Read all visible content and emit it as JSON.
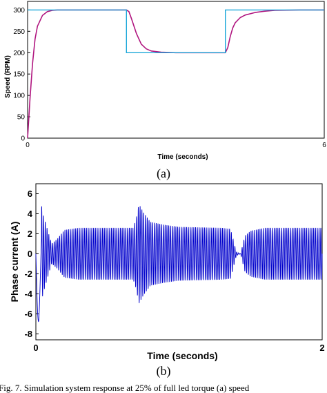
{
  "chart_data": [
    {
      "type": "line",
      "title": "",
      "xlabel": "Time (seconds)",
      "ylabel": "Speed (RPM)",
      "xlim": [
        0,
        6
      ],
      "ylim": [
        0,
        320
      ],
      "x_ticks": [
        "0",
        "6"
      ],
      "y_ticks": [
        "0",
        "50",
        "100",
        "150",
        "200",
        "250",
        "300"
      ],
      "grid": false,
      "series": [
        {
          "key": "reference",
          "color": "#1ba7d9",
          "x": [
            0,
            2.0,
            2.0,
            4.0,
            4.0,
            6.0
          ],
          "y": [
            300,
            300,
            200,
            200,
            300,
            300
          ]
        },
        {
          "key": "actual",
          "color": "#b0157f",
          "x": [
            0,
            0.05,
            0.1,
            0.15,
            0.2,
            0.3,
            0.4,
            0.5,
            0.6,
            0.8,
            1.0,
            2.0,
            2.05,
            2.1,
            2.2,
            2.3,
            2.4,
            2.5,
            2.7,
            3.0,
            4.0,
            4.05,
            4.1,
            4.15,
            4.2,
            4.3,
            4.4,
            4.6,
            4.8,
            5.0,
            5.5,
            6.0
          ],
          "y": [
            0,
            95,
            175,
            232,
            262,
            287,
            296,
            299,
            300,
            300,
            300,
            300,
            296,
            280,
            245,
            220,
            209,
            204,
            201,
            200,
            200,
            212,
            238,
            258,
            270,
            282,
            288,
            294,
            297,
            299,
            300,
            300
          ]
        }
      ]
    },
    {
      "type": "line",
      "title": "",
      "xlabel": "Time (seconds)",
      "ylabel": "Phase current (A)",
      "xlim": [
        0,
        2
      ],
      "ylim": [
        -8.6,
        7.0
      ],
      "x_ticks": [
        "0",
        "2"
      ],
      "y_ticks": [
        "-8",
        "-6",
        "-4",
        "-2",
        "0",
        "2",
        "4",
        "6"
      ],
      "grid": false,
      "series": [
        {
          "key": "phase_current",
          "color": "#0000cc",
          "frequency_hz": 80,
          "envelope_x": [
            0,
            0.02,
            0.05,
            0.07,
            0.09,
            0.11,
            0.15,
            0.2,
            0.3,
            0.55,
            0.68,
            0.7,
            0.72,
            0.75,
            0.8,
            0.9,
            1.0,
            1.3,
            1.36,
            1.4,
            1.43,
            1.46,
            1.5,
            1.6,
            2.0
          ],
          "envelope_y": [
            6.0,
            6.5,
            4.0,
            3.0,
            2.0,
            1.0,
            1.5,
            2.4,
            2.6,
            2.6,
            2.6,
            3.5,
            5.0,
            4.2,
            3.2,
            2.9,
            2.7,
            2.6,
            2.5,
            0.2,
            0.0,
            1.8,
            2.3,
            2.6,
            2.6
          ]
        }
      ]
    }
  ],
  "figure": {
    "panel_a_label": "(a)",
    "panel_b_label": "(b)",
    "caption": "Fig. 7. Simulation system response at 25% of full led torque (a) speed"
  }
}
